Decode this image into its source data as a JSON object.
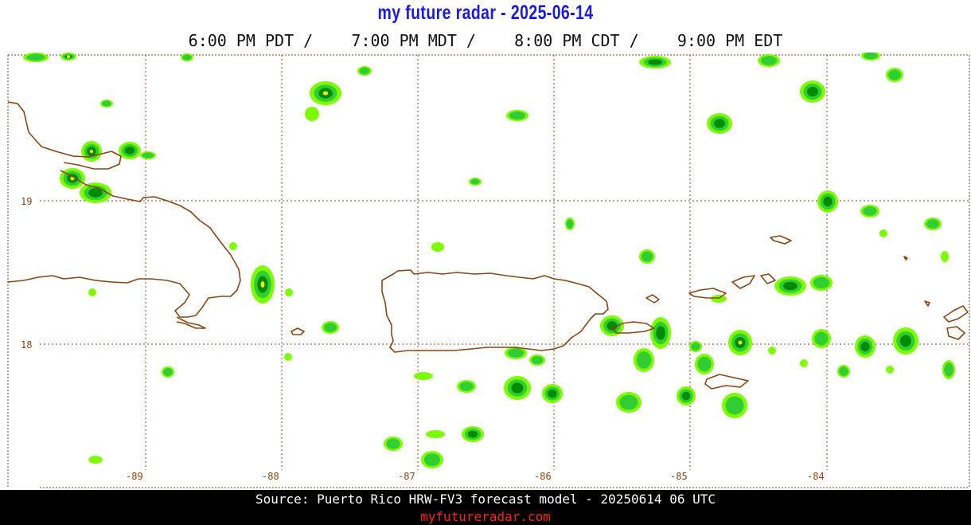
{
  "header": {
    "title": "my future radar - 2025-06-14",
    "times": [
      "6:00 PM PDT /",
      "7:00 PM MDT /",
      "8:00 PM CDT /",
      "9:00 PM EDT"
    ]
  },
  "map": {
    "longitude_labels": [
      "-89",
      "-88",
      "-87",
      "-86",
      "-85",
      "-84"
    ],
    "latitude_labels": [
      "19",
      "18"
    ],
    "colors": {
      "coastline": "#8b4513",
      "grid": "#8b4513",
      "precip_light": "#7cfc00",
      "precip_medium": "#32cd32",
      "precip_heavy": "#008c00",
      "precip_strong": "#ffff00",
      "precip_intense": "#ff8c00",
      "precip_severe": "#e60000"
    }
  },
  "footer": {
    "source": "Source: Puerto Rico HRW-FV3 forecast model - 20250614 06 UTC",
    "site": "myfutureradar.com"
  }
}
